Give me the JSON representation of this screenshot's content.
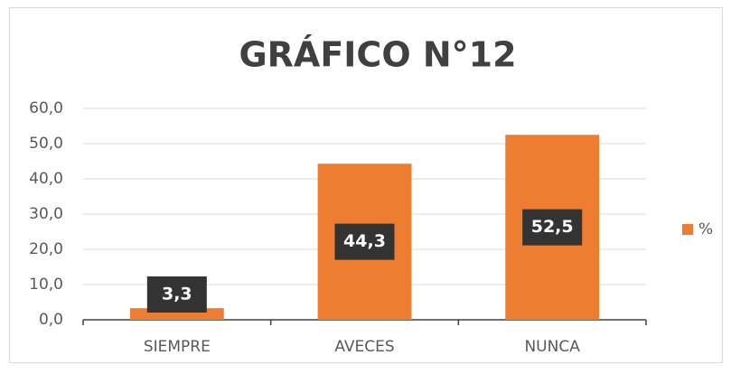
{
  "chart_data": {
    "type": "bar",
    "title": "GRÁFICO N°12",
    "categories": [
      "SIEMPRE",
      "AVECES",
      "NUNCA"
    ],
    "series": [
      {
        "name": "%",
        "color": "#ed7d31",
        "values": [
          3.3,
          44.3,
          52.5
        ],
        "value_labels": [
          "3,3",
          "44,3",
          "52,5"
        ]
      }
    ],
    "ylim": [
      0,
      60
    ],
    "yticks": [
      {
        "value": 0,
        "label": "0,0"
      },
      {
        "value": 10,
        "label": "10,0"
      },
      {
        "value": 20,
        "label": "20,0"
      },
      {
        "value": 30,
        "label": "30,0"
      },
      {
        "value": 40,
        "label": "40,0"
      },
      {
        "value": 50,
        "label": "50,0"
      },
      {
        "value": 60,
        "label": "60,0"
      }
    ],
    "grid": true,
    "legend": "right"
  }
}
